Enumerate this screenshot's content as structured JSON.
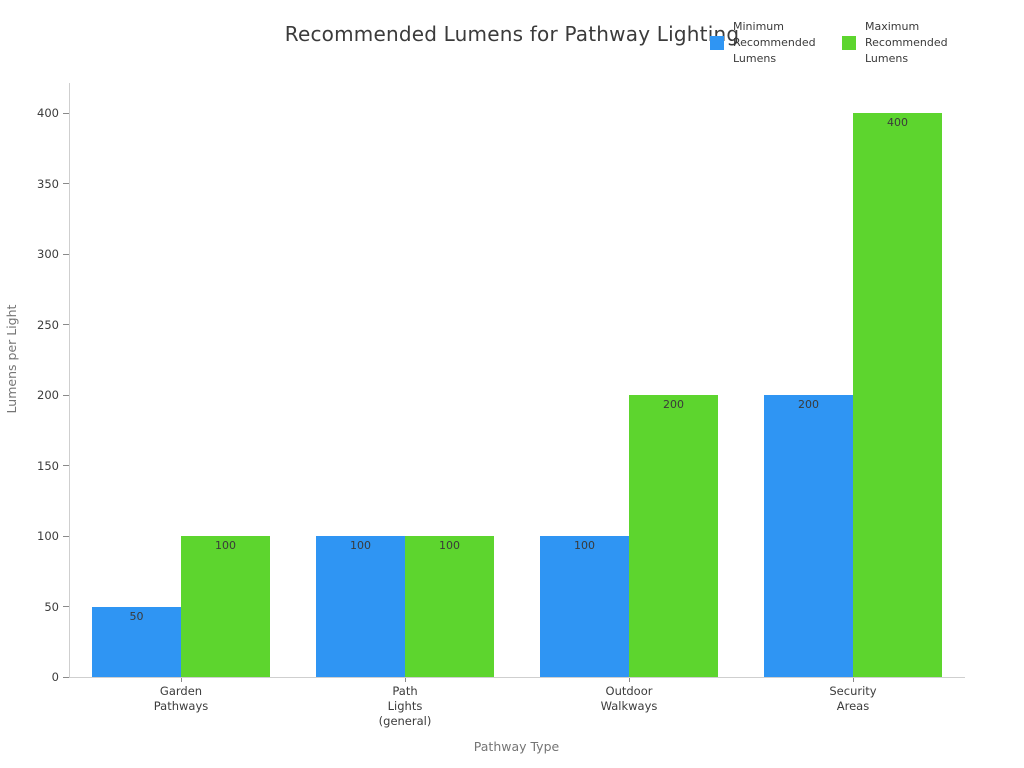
{
  "title": "Recommended Lumens for Pathway Lighting",
  "legend": {
    "items": [
      {
        "label": "Minimum\nRecommended\nLumens",
        "color": "#2f95f3"
      },
      {
        "label": "Maximum\nRecommended\nLumens",
        "color": "#5dd52e"
      }
    ]
  },
  "chart_data": {
    "type": "bar",
    "title": "Recommended Lumens for Pathway Lighting",
    "xlabel": "Pathway Type",
    "ylabel": "Lumens per Light",
    "categories": [
      "Garden\nPathways",
      "Path\nLights\n(general)",
      "Outdoor\nWalkways",
      "Security\nAreas"
    ],
    "series": [
      {
        "name": "Minimum Recommended Lumens",
        "color": "#2f95f3",
        "values": [
          50,
          100,
          100,
          200
        ]
      },
      {
        "name": "Maximum Recommended Lumens",
        "color": "#5dd52e",
        "values": [
          100,
          100,
          200,
          400
        ]
      }
    ],
    "ylim": [
      0,
      400
    ],
    "ytick_step": 50,
    "yticks": [
      0,
      50,
      100,
      150,
      200,
      250,
      300,
      350,
      400
    ],
    "grid": false,
    "bar_value_labels": true,
    "legend_position": "top-right",
    "background": "#ffffff"
  }
}
